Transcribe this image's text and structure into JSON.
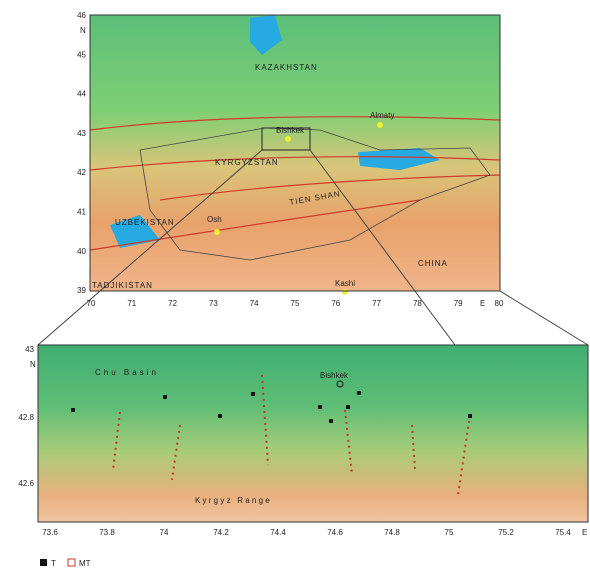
{
  "overview_map": {
    "lat_labels": [
      "46",
      "45",
      "44",
      "43",
      "42",
      "41",
      "40",
      "39"
    ],
    "north": "N",
    "lon_labels": [
      "70",
      "71",
      "72",
      "73",
      "74",
      "75",
      "76",
      "77",
      "78",
      "79",
      "80"
    ],
    "east": "E",
    "regions": [
      "KAZAKHSTAN",
      "KYRGYZSTAN",
      "TIEN SHAN",
      "UZBEKISTAN",
      "TADJIKISTAN",
      "CHINA"
    ],
    "cities": [
      "Bishkek",
      "Almaty",
      "Osh",
      "Kashi"
    ]
  },
  "detail_map": {
    "lat_labels": [
      "43",
      "42.8",
      "42.6"
    ],
    "north": "N",
    "lon_labels": [
      "73.6",
      "73.8",
      "74",
      "74.2",
      "74.4",
      "74.6",
      "74.8",
      "75",
      "75.2",
      "75.4"
    ],
    "east": "E",
    "basin": "Chu Basin",
    "city": "Bishkek",
    "range": "K y r g y z   R a n g e"
  },
  "legend": [
    "T",
    "MT"
  ]
}
